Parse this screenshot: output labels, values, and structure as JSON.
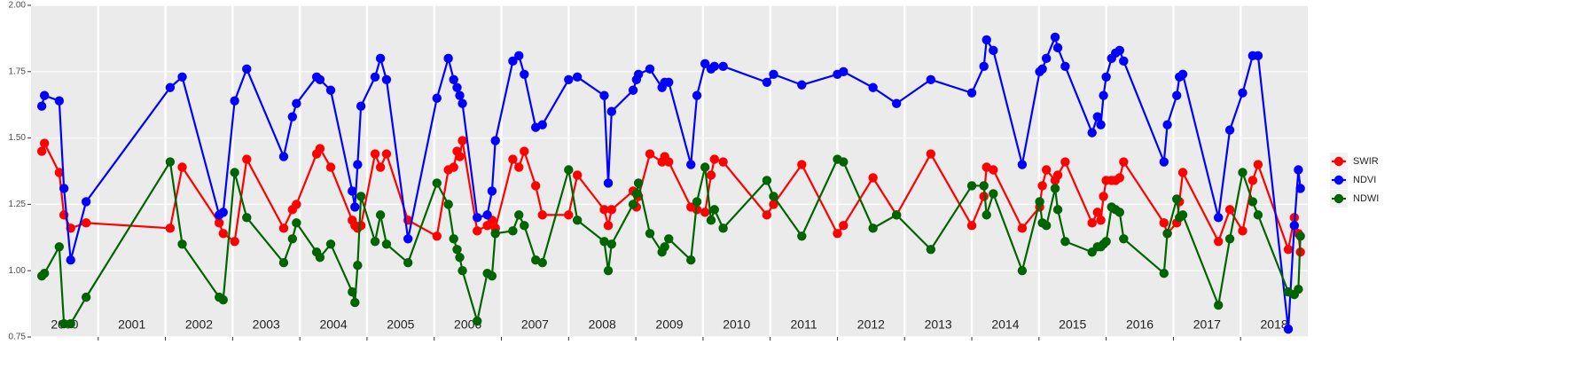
{
  "chart_data": {
    "type": "line",
    "x": [
      2000.16,
      2000.2,
      2000.42,
      2000.49,
      2000.59,
      2000.82,
      2002.07,
      2002.25,
      2002.8,
      2002.86,
      2003.03,
      2003.21,
      2003.76,
      2003.89,
      2003.95,
      2004.25,
      2004.3,
      2004.46,
      2004.78,
      2004.82,
      2004.86,
      2004.91,
      2005.12,
      2005.2,
      2005.29,
      2005.61,
      2006.04,
      2006.21,
      2006.29,
      2006.34,
      2006.38,
      2006.42,
      2006.64,
      2006.79,
      2006.86,
      2006.91,
      2007.17,
      2007.26,
      2007.34,
      2007.51,
      2007.61,
      2008.0,
      2008.13,
      2008.53,
      2008.59,
      2008.64,
      2008.96,
      2009.01,
      2009.04,
      2009.21,
      2009.39,
      2009.43,
      2009.49,
      2009.82,
      2009.91,
      2010.03,
      2010.12,
      2010.17,
      2010.3,
      2010.95,
      2011.05,
      2011.47,
      2012.0,
      2012.09,
      2012.53,
      2012.88,
      2013.39,
      2014.0,
      2014.18,
      2014.22,
      2014.32,
      2014.75,
      2015.01,
      2015.05,
      2015.11,
      2015.24,
      2015.28,
      2015.39,
      2015.79,
      2015.87,
      2015.92,
      2015.96,
      2016.0,
      2016.08,
      2016.14,
      2016.2,
      2016.26,
      2016.86,
      2016.91,
      2017.05,
      2017.09,
      2017.14,
      2017.67,
      2017.84,
      2018.03,
      2018.18,
      2018.26,
      2018.71,
      2018.8,
      2018.86,
      2018.89
    ],
    "series": [
      {
        "name": "SWIR",
        "color": "#ff0000",
        "values": [
          1.45,
          1.48,
          1.37,
          1.21,
          1.16,
          1.18,
          1.16,
          1.39,
          1.18,
          1.14,
          1.11,
          1.42,
          1.16,
          1.23,
          1.25,
          1.44,
          1.46,
          1.39,
          1.19,
          1.17,
          1.16,
          1.17,
          1.44,
          1.39,
          1.44,
          1.19,
          1.13,
          1.38,
          1.39,
          1.45,
          1.43,
          1.49,
          1.15,
          1.17,
          1.19,
          1.16,
          1.42,
          1.39,
          1.45,
          1.32,
          1.21,
          1.21,
          1.36,
          1.23,
          1.17,
          1.23,
          1.3,
          1.24,
          1.28,
          1.44,
          1.41,
          1.43,
          1.41,
          1.24,
          1.23,
          1.22,
          1.36,
          1.42,
          1.41,
          1.21,
          1.25,
          1.4,
          1.14,
          1.17,
          1.35,
          1.21,
          1.44,
          1.17,
          1.28,
          1.39,
          1.38,
          1.16,
          1.24,
          1.32,
          1.38,
          1.34,
          1.36,
          1.41,
          1.18,
          1.22,
          1.19,
          1.28,
          1.34,
          1.34,
          1.34,
          1.35,
          1.41,
          1.18,
          1.14,
          1.18,
          1.26,
          1.37,
          1.11,
          1.23,
          1.15,
          1.34,
          1.4,
          1.08,
          1.2,
          1.14,
          1.07
        ]
      },
      {
        "name": "NDVI",
        "color": "#0000ff",
        "values": [
          1.62,
          1.66,
          1.64,
          1.31,
          1.04,
          1.26,
          1.69,
          1.73,
          1.21,
          1.22,
          1.64,
          1.76,
          1.43,
          1.58,
          1.63,
          1.73,
          1.72,
          1.68,
          1.3,
          1.24,
          1.4,
          1.62,
          1.73,
          1.8,
          1.72,
          1.12,
          1.65,
          1.8,
          1.72,
          1.69,
          1.66,
          1.63,
          1.2,
          1.21,
          1.3,
          1.49,
          1.79,
          1.81,
          1.74,
          1.54,
          1.55,
          1.72,
          1.73,
          1.66,
          1.33,
          1.6,
          1.68,
          1.72,
          1.74,
          1.76,
          1.69,
          1.71,
          1.71,
          1.4,
          1.66,
          1.78,
          1.76,
          1.77,
          1.77,
          1.71,
          1.74,
          1.7,
          1.74,
          1.75,
          1.69,
          1.63,
          1.72,
          1.67,
          1.77,
          1.87,
          1.83,
          1.4,
          1.75,
          1.76,
          1.8,
          1.88,
          1.84,
          1.77,
          1.52,
          1.58,
          1.55,
          1.66,
          1.73,
          1.8,
          1.82,
          1.83,
          1.79,
          1.41,
          1.55,
          1.66,
          1.73,
          1.74,
          1.2,
          1.53,
          1.67,
          1.81,
          1.81,
          0.78,
          1.17,
          1.38,
          1.31
        ]
      },
      {
        "name": "NDWI",
        "color": "#006400",
        "values": [
          0.98,
          0.99,
          1.09,
          0.8,
          0.8,
          0.9,
          1.41,
          1.1,
          0.9,
          0.89,
          1.37,
          1.2,
          1.03,
          1.12,
          1.18,
          1.07,
          1.05,
          1.1,
          0.92,
          0.88,
          1.02,
          1.28,
          1.11,
          1.21,
          1.1,
          1.03,
          1.33,
          1.25,
          1.12,
          1.08,
          1.05,
          1.0,
          0.81,
          0.99,
          0.98,
          1.14,
          1.15,
          1.21,
          1.17,
          1.04,
          1.03,
          1.38,
          1.19,
          1.11,
          1.0,
          1.1,
          1.25,
          1.29,
          1.33,
          1.14,
          1.07,
          1.09,
          1.12,
          1.04,
          1.26,
          1.39,
          1.19,
          1.23,
          1.16,
          1.34,
          1.28,
          1.13,
          1.42,
          1.41,
          1.16,
          1.21,
          1.08,
          1.32,
          1.32,
          1.21,
          1.29,
          1.0,
          1.26,
          1.18,
          1.17,
          1.31,
          1.23,
          1.11,
          1.07,
          1.09,
          1.09,
          1.1,
          1.11,
          1.24,
          1.23,
          1.22,
          1.12,
          0.99,
          1.14,
          1.27,
          1.2,
          1.21,
          0.87,
          1.12,
          1.37,
          1.26,
          1.21,
          0.92,
          0.91,
          0.93,
          1.13
        ]
      }
    ],
    "xlim": [
      2000,
      2019
    ],
    "xticks": [
      {
        "value": 2000.5,
        "label": "2000"
      },
      {
        "value": 2001.5,
        "label": "2001"
      },
      {
        "value": 2002.5,
        "label": "2002"
      },
      {
        "value": 2003.5,
        "label": "2003"
      },
      {
        "value": 2004.5,
        "label": "2004"
      },
      {
        "value": 2005.5,
        "label": "2005"
      },
      {
        "value": 2006.5,
        "label": "2006"
      },
      {
        "value": 2007.5,
        "label": "2007"
      },
      {
        "value": 2008.5,
        "label": "2008"
      },
      {
        "value": 2009.5,
        "label": "2009"
      },
      {
        "value": 2010.5,
        "label": "2010"
      },
      {
        "value": 2011.5,
        "label": "2011"
      },
      {
        "value": 2012.5,
        "label": "2012"
      },
      {
        "value": 2013.5,
        "label": "2013"
      },
      {
        "value": 2014.5,
        "label": "2014"
      },
      {
        "value": 2015.5,
        "label": "2015"
      },
      {
        "value": 2016.5,
        "label": "2016"
      },
      {
        "value": 2017.5,
        "label": "2017"
      },
      {
        "value": 2018.5,
        "label": "2018"
      }
    ],
    "xgrid": [
      2001,
      2002,
      2003,
      2004,
      2005,
      2006,
      2007,
      2008,
      2009,
      2010,
      2011,
      2012,
      2013,
      2014,
      2015,
      2016,
      2017,
      2018
    ],
    "ylim": [
      0.75,
      2.0
    ],
    "yticks": [
      {
        "value": 0.75,
        "label": "0.75"
      },
      {
        "value": 1.0,
        "label": "1.00"
      },
      {
        "value": 1.25,
        "label": "1.25"
      },
      {
        "value": 1.5,
        "label": "1.50"
      },
      {
        "value": 1.75,
        "label": "1.75"
      },
      {
        "value": 2.0,
        "label": "2.00"
      }
    ],
    "grid": true,
    "legend": "right"
  }
}
